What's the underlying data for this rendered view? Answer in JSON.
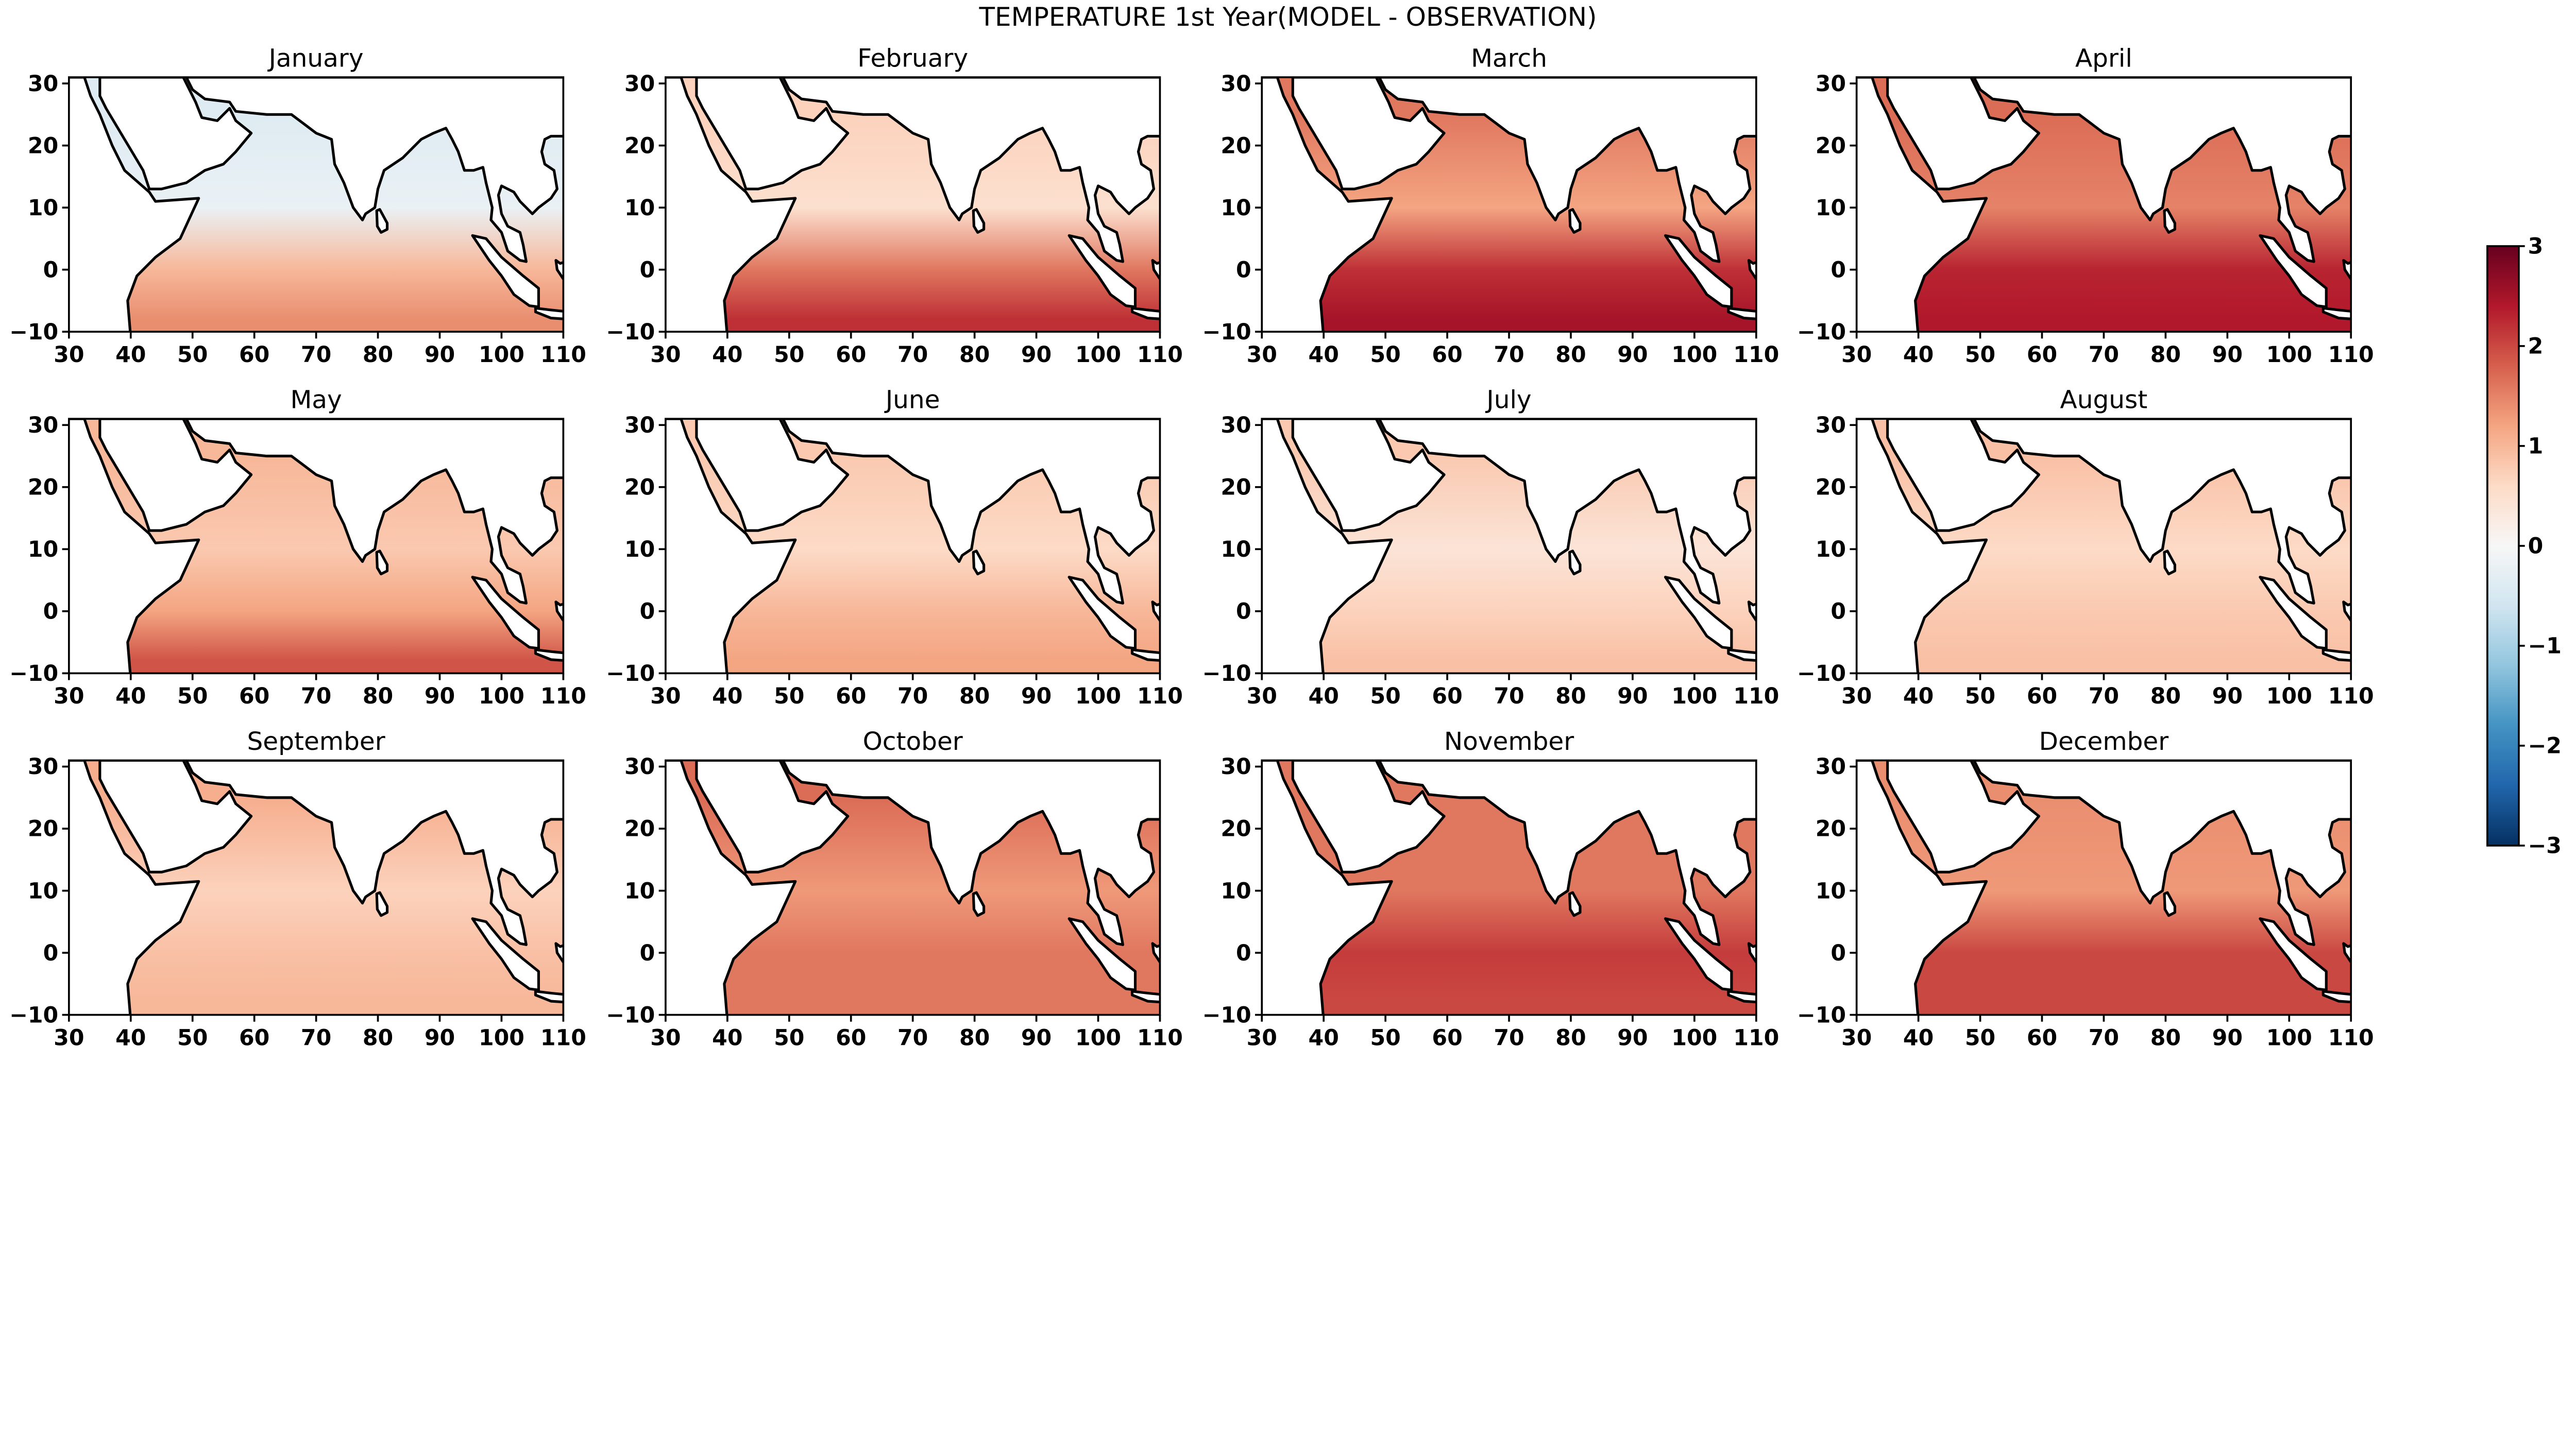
{
  "chart_data": {
    "type": "heatmap",
    "title": "TEMPERATURE 1st Year(MODEL - OBSERVATION)",
    "xlim": [
      30,
      110
    ],
    "ylim": [
      -10,
      31
    ],
    "xticks": [
      "30",
      "40",
      "50",
      "60",
      "70",
      "80",
      "90",
      "100",
      "110"
    ],
    "yticks": [
      "30",
      "20",
      "10",
      "0",
      "−10"
    ],
    "colormap": "RdBu_r",
    "colorbar": {
      "range": [
        -3,
        3
      ],
      "ticks": [
        "3",
        "2",
        "1",
        "0",
        "−1",
        "−2",
        "−3"
      ],
      "placement": "right"
    },
    "colormap_stops": [
      "#053061",
      "#2166ac",
      "#4393c3",
      "#92c5de",
      "#d1e5f0",
      "#f7f7f7",
      "#fddbc7",
      "#f4a582",
      "#d6604d",
      "#b2182b",
      "#67001f"
    ],
    "lat_band_latitudes": [
      25,
      10,
      0,
      -8
    ],
    "panels": [
      {
        "title": "January",
        "approx_anomaly_by_lat": [
          -0.4,
          -0.2,
          1.0,
          1.4
        ]
      },
      {
        "title": "February",
        "approx_anomaly_by_lat": [
          0.7,
          0.5,
          1.6,
          2.2
        ]
      },
      {
        "title": "March",
        "approx_anomaly_by_lat": [
          1.6,
          1.2,
          2.2,
          2.5
        ]
      },
      {
        "title": "April",
        "approx_anomaly_by_lat": [
          1.7,
          1.5,
          2.3,
          2.4
        ]
      },
      {
        "title": "May",
        "approx_anomaly_by_lat": [
          1.0,
          0.8,
          1.2,
          1.9
        ]
      },
      {
        "title": "June",
        "approx_anomaly_by_lat": [
          0.8,
          0.6,
          1.0,
          1.2
        ]
      },
      {
        "title": "July",
        "approx_anomaly_by_lat": [
          0.8,
          0.4,
          0.7,
          0.9
        ]
      },
      {
        "title": "August",
        "approx_anomaly_by_lat": [
          0.9,
          0.6,
          0.8,
          0.9
        ]
      },
      {
        "title": "September",
        "approx_anomaly_by_lat": [
          1.1,
          0.7,
          0.9,
          1.0
        ]
      },
      {
        "title": "October",
        "approx_anomaly_by_lat": [
          1.7,
          1.3,
          1.6,
          1.6
        ]
      },
      {
        "title": "November",
        "approx_anomaly_by_lat": [
          1.6,
          1.6,
          2.1,
          2.0
        ]
      },
      {
        "title": "December",
        "approx_anomaly_by_lat": [
          1.4,
          1.3,
          2.0,
          2.0
        ]
      }
    ]
  }
}
